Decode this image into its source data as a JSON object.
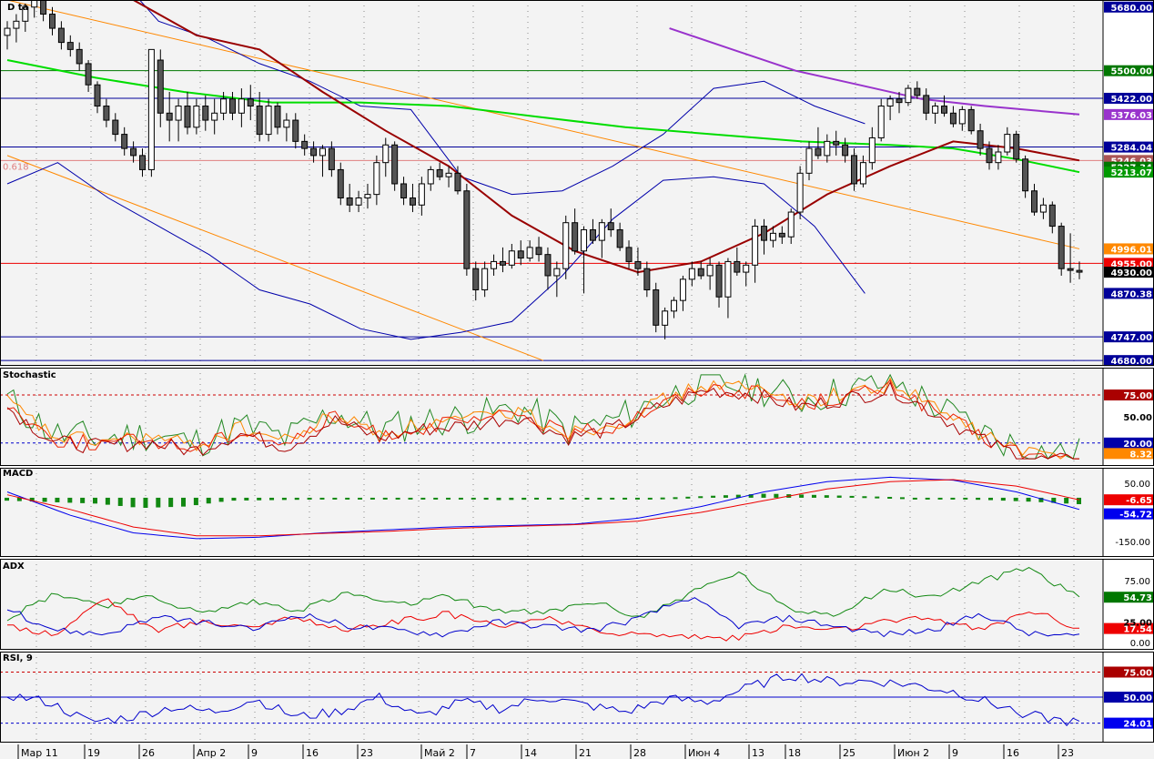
{
  "chart_data": {
    "type": "candlestick",
    "x_dates": [
      "Мар 11",
      "19",
      "26",
      "Апр 2",
      "9",
      "16",
      "23",
      "Май 2",
      "7",
      "14",
      "21",
      "28",
      "Июн 4",
      "13",
      "18",
      "25",
      "Июн 2",
      "9",
      "16",
      "23"
    ],
    "levels": [
      {
        "value": 5500,
        "color": "#007700"
      },
      {
        "value": 5422,
        "color": "#000099"
      },
      {
        "value": 5284.04,
        "color": "#000099"
      },
      {
        "value": 5246.03,
        "color": "#e08080",
        "label": "0.618"
      },
      {
        "value": 4955,
        "color": "#ee0000"
      },
      {
        "value": 4747,
        "color": "#000099"
      },
      {
        "value": 4680,
        "color": "#000099"
      }
    ],
    "price_tags": [
      {
        "label": "5680.00",
        "value": 5680,
        "bg": "#000099"
      },
      {
        "label": "5500.00",
        "value": 5500,
        "bg": "#007700"
      },
      {
        "label": "5422.00",
        "value": 5422,
        "bg": "#000099"
      },
      {
        "label": "5376.03",
        "value": 5376,
        "bg": "#9933cc"
      },
      {
        "label": "5284.04",
        "value": 5284,
        "bg": "#000099"
      },
      {
        "label": "5246.03",
        "value": 5246,
        "bg": "#aa5555"
      },
      {
        "label": "5227.34",
        "value": 5227,
        "bg": "#007700"
      },
      {
        "label": "5213.07",
        "value": 5213,
        "bg": "#009900"
      },
      {
        "label": "4996.01",
        "value": 4996,
        "bg": "#ff8800"
      },
      {
        "label": "4955.00",
        "value": 4955,
        "bg": "#ee0000"
      },
      {
        "label": "4930.00",
        "value": 4930,
        "bg": "#000000"
      },
      {
        "label": "4870.38",
        "value": 4870,
        "bg": "#000099"
      },
      {
        "label": "4747.00",
        "value": 4747,
        "bg": "#000099"
      },
      {
        "label": "4680.00",
        "value": 4680,
        "bg": "#000099"
      }
    ],
    "candles": [
      [
        5600,
        5640,
        5560,
        5620
      ],
      [
        5620,
        5660,
        5580,
        5640
      ],
      [
        5640,
        5690,
        5610,
        5680
      ],
      [
        5680,
        5720,
        5650,
        5700
      ],
      [
        5700,
        5720,
        5640,
        5660
      ],
      [
        5660,
        5680,
        5600,
        5620
      ],
      [
        5620,
        5640,
        5560,
        5580
      ],
      [
        5580,
        5600,
        5540,
        5560
      ],
      [
        5560,
        5580,
        5500,
        5520
      ],
      [
        5520,
        5530,
        5440,
        5460
      ],
      [
        5460,
        5470,
        5380,
        5400
      ],
      [
        5400,
        5420,
        5340,
        5360
      ],
      [
        5360,
        5380,
        5300,
        5320
      ],
      [
        5320,
        5340,
        5260,
        5280
      ],
      [
        5280,
        5300,
        5240,
        5260
      ],
      [
        5260,
        5280,
        5200,
        5220
      ],
      [
        5220,
        5560,
        5200,
        5560
      ],
      [
        5530,
        5560,
        5340,
        5380
      ],
      [
        5380,
        5440,
        5300,
        5360
      ],
      [
        5360,
        5420,
        5300,
        5400
      ],
      [
        5400,
        5440,
        5320,
        5340
      ],
      [
        5340,
        5420,
        5320,
        5400
      ],
      [
        5400,
        5430,
        5330,
        5360
      ],
      [
        5360,
        5420,
        5320,
        5380
      ],
      [
        5380,
        5440,
        5360,
        5420
      ],
      [
        5420,
        5440,
        5360,
        5380
      ],
      [
        5380,
        5450,
        5340,
        5420
      ],
      [
        5420,
        5460,
        5360,
        5400
      ],
      [
        5400,
        5440,
        5300,
        5320
      ],
      [
        5320,
        5420,
        5300,
        5400
      ],
      [
        5400,
        5410,
        5320,
        5340
      ],
      [
        5340,
        5380,
        5300,
        5360
      ],
      [
        5360,
        5380,
        5280,
        5300
      ],
      [
        5300,
        5320,
        5260,
        5280
      ],
      [
        5280,
        5300,
        5240,
        5260
      ],
      [
        5260,
        5290,
        5200,
        5280
      ],
      [
        5280,
        5300,
        5200,
        5220
      ],
      [
        5220,
        5240,
        5120,
        5140
      ],
      [
        5140,
        5180,
        5100,
        5120
      ],
      [
        5120,
        5160,
        5100,
        5140
      ],
      [
        5140,
        5180,
        5110,
        5150
      ],
      [
        5150,
        5260,
        5120,
        5240
      ],
      [
        5240,
        5310,
        5200,
        5290
      ],
      [
        5290,
        5300,
        5160,
        5180
      ],
      [
        5180,
        5200,
        5120,
        5140
      ],
      [
        5140,
        5180,
        5100,
        5120
      ],
      [
        5120,
        5200,
        5090,
        5180
      ],
      [
        5180,
        5230,
        5160,
        5220
      ],
      [
        5220,
        5240,
        5190,
        5200
      ],
      [
        5200,
        5230,
        5170,
        5210
      ],
      [
        5210,
        5230,
        5150,
        5160
      ],
      [
        5160,
        5180,
        4920,
        4940
      ],
      [
        4940,
        4960,
        4850,
        4880
      ],
      [
        4880,
        4960,
        4860,
        4940
      ],
      [
        4940,
        4980,
        4920,
        4960
      ],
      [
        4960,
        5000,
        4930,
        4950
      ],
      [
        4950,
        5010,
        4940,
        4990
      ],
      [
        4990,
        5020,
        4950,
        4970
      ],
      [
        4970,
        5020,
        4960,
        5000
      ],
      [
        5000,
        5030,
        4960,
        4980
      ],
      [
        4980,
        5000,
        4880,
        4920
      ],
      [
        4920,
        4960,
        4860,
        4940
      ],
      [
        4940,
        5090,
        4910,
        5070
      ],
      [
        5070,
        5110,
        4980,
        4990
      ],
      [
        4990,
        5060,
        4870,
        5050
      ],
      [
        5050,
        5080,
        5010,
        5020
      ],
      [
        5020,
        5080,
        4970,
        5070
      ],
      [
        5070,
        5110,
        5030,
        5050
      ],
      [
        5050,
        5070,
        4990,
        5000
      ],
      [
        5000,
        5020,
        4940,
        4960
      ],
      [
        4960,
        5000,
        4920,
        4940
      ],
      [
        4940,
        4960,
        4860,
        4880
      ],
      [
        4880,
        4900,
        4760,
        4780
      ],
      [
        4780,
        4830,
        4740,
        4820
      ],
      [
        4820,
        4860,
        4800,
        4850
      ],
      [
        4850,
        4920,
        4820,
        4910
      ],
      [
        4910,
        4960,
        4890,
        4940
      ],
      [
        4940,
        4960,
        4910,
        4920
      ],
      [
        4920,
        4970,
        4880,
        4950
      ],
      [
        4950,
        4960,
        4830,
        4860
      ],
      [
        4860,
        4970,
        4800,
        4960
      ],
      [
        4960,
        5000,
        4920,
        4930
      ],
      [
        4930,
        4960,
        4890,
        4950
      ],
      [
        4950,
        5080,
        4900,
        5060
      ],
      [
        5060,
        5080,
        4980,
        5020
      ],
      [
        5020,
        5060,
        5000,
        5040
      ],
      [
        5040,
        5060,
        5010,
        5030
      ],
      [
        5030,
        5110,
        5010,
        5100
      ],
      [
        5100,
        5230,
        5080,
        5210
      ],
      [
        5210,
        5300,
        5190,
        5280
      ],
      [
        5280,
        5340,
        5250,
        5260
      ],
      [
        5260,
        5320,
        5240,
        5300
      ],
      [
        5300,
        5330,
        5260,
        5290
      ],
      [
        5290,
        5310,
        5240,
        5260
      ],
      [
        5260,
        5280,
        5160,
        5180
      ],
      [
        5180,
        5260,
        5170,
        5240
      ],
      [
        5240,
        5340,
        5220,
        5310
      ],
      [
        5310,
        5420,
        5300,
        5400
      ],
      [
        5400,
        5430,
        5360,
        5420
      ],
      [
        5420,
        5440,
        5380,
        5410
      ],
      [
        5410,
        5460,
        5400,
        5450
      ],
      [
        5450,
        5470,
        5420,
        5430
      ],
      [
        5430,
        5450,
        5360,
        5380
      ],
      [
        5380,
        5410,
        5350,
        5400
      ],
      [
        5400,
        5430,
        5370,
        5380
      ],
      [
        5380,
        5400,
        5340,
        5350
      ],
      [
        5350,
        5400,
        5330,
        5390
      ],
      [
        5390,
        5400,
        5320,
        5330
      ],
      [
        5330,
        5350,
        5260,
        5280
      ],
      [
        5280,
        5300,
        5220,
        5240
      ],
      [
        5240,
        5290,
        5220,
        5270
      ],
      [
        5270,
        5340,
        5260,
        5320
      ],
      [
        5320,
        5330,
        5240,
        5250
      ],
      [
        5250,
        5260,
        5140,
        5160
      ],
      [
        5160,
        5180,
        5090,
        5100
      ],
      [
        5100,
        5140,
        5080,
        5120
      ],
      [
        5120,
        5130,
        5040,
        5060
      ],
      [
        5060,
        5070,
        4920,
        4940
      ],
      [
        4940,
        5040,
        4900,
        4935
      ],
      [
        4935,
        4960,
        4910,
        4930
      ]
    ],
    "bollinger_upper": [
      [
        0,
        5740
      ],
      [
        8,
        5740
      ],
      [
        16,
        5800
      ],
      [
        24,
        5640
      ],
      [
        32,
        5590
      ],
      [
        40,
        5520
      ],
      [
        48,
        5470
      ],
      [
        56,
        5400
      ],
      [
        64,
        5390
      ],
      [
        72,
        5200
      ],
      [
        80,
        5150
      ],
      [
        88,
        5160
      ],
      [
        96,
        5230
      ],
      [
        104,
        5320
      ],
      [
        112,
        5450
      ],
      [
        120,
        5470
      ],
      [
        128,
        5400
      ],
      [
        136,
        5350
      ]
    ],
    "bollinger_lower": [
      [
        0,
        5180
      ],
      [
        8,
        5240
      ],
      [
        16,
        5140
      ],
      [
        24,
        5060
      ],
      [
        32,
        4980
      ],
      [
        40,
        4880
      ],
      [
        48,
        4840
      ],
      [
        56,
        4770
      ],
      [
        64,
        4740
      ],
      [
        72,
        4760
      ],
      [
        80,
        4790
      ],
      [
        88,
        4920
      ],
      [
        96,
        5080
      ],
      [
        104,
        5190
      ],
      [
        112,
        5200
      ],
      [
        120,
        5180
      ],
      [
        128,
        5060
      ],
      [
        136,
        4870
      ]
    ],
    "ma_short": [
      [
        0,
        5720
      ],
      [
        10,
        5720
      ],
      [
        20,
        5700
      ],
      [
        30,
        5600
      ],
      [
        40,
        5560
      ],
      [
        50,
        5440
      ],
      [
        60,
        5330
      ],
      [
        70,
        5230
      ],
      [
        80,
        5090
      ],
      [
        90,
        4990
      ],
      [
        100,
        4930
      ],
      [
        110,
        4960
      ],
      [
        120,
        5040
      ],
      [
        130,
        5150
      ],
      [
        140,
        5230
      ],
      [
        150,
        5300
      ],
      [
        160,
        5280
      ],
      [
        170,
        5246
      ]
    ],
    "ma_green": [
      [
        0,
        5530
      ],
      [
        14,
        5480
      ],
      [
        28,
        5440
      ],
      [
        42,
        5410
      ],
      [
        56,
        5410
      ],
      [
        70,
        5400
      ],
      [
        84,
        5370
      ],
      [
        98,
        5340
      ],
      [
        112,
        5320
      ],
      [
        126,
        5300
      ],
      [
        140,
        5290
      ],
      [
        150,
        5280
      ],
      [
        160,
        5250
      ],
      [
        170,
        5213
      ]
    ],
    "ma_purple": [
      [
        105,
        5620
      ],
      [
        115,
        5560
      ],
      [
        125,
        5500
      ],
      [
        135,
        5460
      ],
      [
        145,
        5420
      ],
      [
        155,
        5400
      ],
      [
        170,
        5376
      ]
    ],
    "channel_orange": [
      {
        "from": [
          0,
          5700
        ],
        "to": [
          170,
          4996
        ]
      },
      {
        "from": [
          0,
          5260
        ],
        "to": [
          85,
          4680
        ]
      }
    ],
    "stochastic": {
      "title": "Stochastic",
      "levels": [
        75,
        50,
        20
      ],
      "tags": [
        {
          "label": "75.00",
          "bg": "#aa0000"
        },
        {
          "label": "50.00",
          "bg": null
        },
        {
          "label": "20.00",
          "bg": "#0000aa"
        },
        {
          "label": "8.32",
          "bg": "#ff8800"
        }
      ]
    },
    "macd": {
      "title": "MACD",
      "ticks": [
        50,
        -150
      ],
      "tags": [
        {
          "label": "-6.65",
          "bg": "#ee0000"
        },
        {
          "label": "-54.72",
          "bg": "#0000ee"
        }
      ]
    },
    "adx": {
      "title": "ADX",
      "ticks": [
        75,
        0
      ],
      "tags": [
        {
          "label": "54.73",
          "bg": "#007700"
        },
        {
          "label": "17.54",
          "bg": "#ee0000"
        },
        {
          "label": "25.00",
          "bg": null
        }
      ]
    },
    "rsi": {
      "title": "RSI, 9",
      "levels": [
        75,
        50,
        24
      ],
      "tags": [
        {
          "label": "75.00",
          "bg": "#aa0000"
        },
        {
          "label": "50.00",
          "bg": "#0000aa"
        },
        {
          "label": "24.01",
          "bg": "#0000ee"
        }
      ]
    }
  }
}
